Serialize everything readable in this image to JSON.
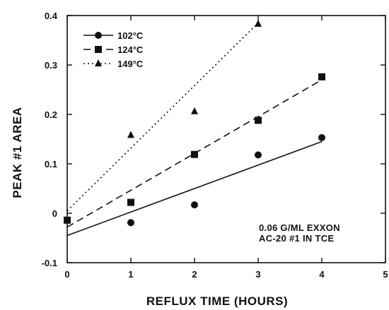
{
  "chart_data": {
    "type": "scatter",
    "xlabel": "REFLUX TIME (HOURS)",
    "ylabel": "PEAK #1 AREA",
    "xlim": [
      0,
      5
    ],
    "ylim": [
      -0.1,
      0.4
    ],
    "x_ticks": [
      "0",
      "1",
      "2",
      "3",
      "4",
      "5"
    ],
    "y_ticks": [
      "-0.1",
      "0",
      "0.1",
      "0.2",
      "0.3",
      "0.4"
    ],
    "grid": false,
    "legend_position": "top-left",
    "annotation": [
      "0.06 G/ML EXXON",
      "AC-20 #1 IN TCE"
    ],
    "series": [
      {
        "name": "102°C",
        "marker": "circle",
        "line_style": "solid",
        "x": [
          1,
          2,
          3,
          4
        ],
        "y": [
          -0.019,
          0.017,
          0.118,
          0.153
        ],
        "fit_line": [
          [
            0,
            -0.045
          ],
          [
            4,
            0.145
          ]
        ]
      },
      {
        "name": "124°C",
        "marker": "square",
        "line_style": "dashed",
        "x": [
          0,
          1,
          2,
          3,
          4
        ],
        "y": [
          -0.014,
          0.022,
          0.119,
          0.188,
          0.276
        ],
        "fit_line": [
          [
            0,
            -0.028
          ],
          [
            4,
            0.27
          ]
        ]
      },
      {
        "name": "149°C",
        "marker": "triangle",
        "line_style": "dotted",
        "x": [
          1,
          2,
          3
        ],
        "y": [
          0.158,
          0.206,
          0.383
        ],
        "fit_line": [
          [
            0,
            0.005
          ],
          [
            3,
            0.385
          ]
        ]
      }
    ]
  }
}
